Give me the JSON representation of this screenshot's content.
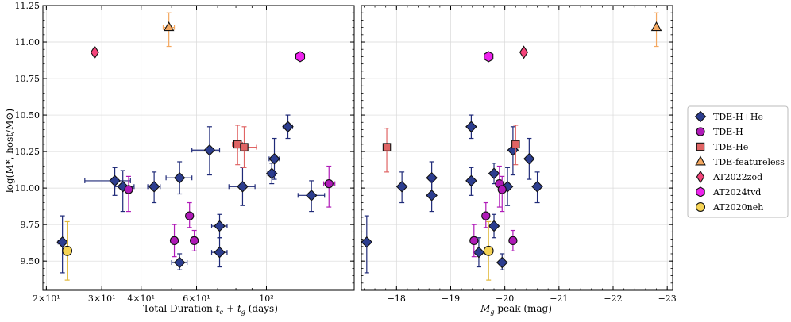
{
  "chart_data": [
    {
      "type": "scatter",
      "panel": "left",
      "xscale": "log",
      "xlabel_parts": {
        "main": "Total Duration ",
        "te": "t",
        "te_sub": "e",
        "plus": " + ",
        "tg": "t",
        "tg_sub": "g",
        "units": " (days)"
      },
      "ylabel_text": "log(M*, host/M⊙)",
      "xlim": [
        19.5,
        190
      ],
      "ylim": [
        9.3,
        11.25
      ],
      "xticks": [
        {
          "v": 20,
          "label": "2×10¹"
        },
        {
          "v": 30,
          "label": "3×10¹"
        },
        {
          "v": 40,
          "label": "4×10¹"
        },
        {
          "v": 60,
          "label": "6×10¹"
        },
        {
          "v": 100,
          "label": "10²"
        }
      ],
      "yticks": [
        {
          "v": 9.5,
          "label": "9.50"
        },
        {
          "v": 9.75,
          "label": "9.75"
        },
        {
          "v": 10.0,
          "label": "10.00"
        },
        {
          "v": 10.25,
          "label": "10.25"
        },
        {
          "v": 10.5,
          "label": "10.50"
        },
        {
          "v": 10.75,
          "label": "10.75"
        },
        {
          "v": 11.0,
          "label": "11.00"
        },
        {
          "v": 11.25,
          "label": "11.25"
        }
      ],
      "series": [
        {
          "name": "TDE-H+He",
          "points": [
            {
              "x": 22.5,
              "y": 9.63,
              "xl": 21.8,
              "xh": 23.3,
              "yl": 9.42,
              "yh": 9.81
            },
            {
              "x": 33,
              "y": 10.05,
              "xl": 26.5,
              "xh": 37,
              "yl": 9.95,
              "yh": 10.14
            },
            {
              "x": 35,
              "y": 10.01,
              "xl": 33,
              "xh": 38,
              "yl": 9.84,
              "yh": 10.12
            },
            {
              "x": 44,
              "y": 10.01,
              "xl": 42,
              "xh": 46,
              "yl": 9.9,
              "yh": 10.11
            },
            {
              "x": 53,
              "y": 10.07,
              "xl": 48,
              "xh": 58,
              "yl": 9.96,
              "yh": 10.18
            },
            {
              "x": 53,
              "y": 9.49,
              "xl": 50,
              "xh": 56,
              "yl": 9.44,
              "yh": 9.55
            },
            {
              "x": 66,
              "y": 10.26,
              "xl": 58,
              "xh": 71,
              "yl": 10.09,
              "yh": 10.42
            },
            {
              "x": 71,
              "y": 9.74,
              "xl": 67,
              "xh": 75,
              "yl": 9.66,
              "yh": 9.82
            },
            {
              "x": 71,
              "y": 9.56,
              "xl": 67,
              "xh": 75,
              "yl": 9.46,
              "yh": 9.66
            },
            {
              "x": 84,
              "y": 10.01,
              "xl": 76,
              "xh": 92,
              "yl": 9.88,
              "yh": 10.14
            },
            {
              "x": 104,
              "y": 10.1,
              "xl": 101,
              "xh": 107,
              "yl": 10.03,
              "yh": 10.17
            },
            {
              "x": 106,
              "y": 10.2,
              "xl": 102,
              "xh": 110,
              "yl": 10.06,
              "yh": 10.34
            },
            {
              "x": 117,
              "y": 10.42,
              "xl": 113,
              "xh": 121,
              "yl": 10.34,
              "yh": 10.5
            },
            {
              "x": 139,
              "y": 9.95,
              "xl": 126,
              "xh": 153,
              "yl": 9.84,
              "yh": 10.05
            }
          ]
        },
        {
          "name": "TDE-H",
          "points": [
            {
              "x": 36.5,
              "y": 9.99,
              "xl": 36,
              "xh": 37,
              "yl": 9.84,
              "yh": 10.08
            },
            {
              "x": 51,
              "y": 9.64,
              "xl": 50,
              "xh": 52,
              "yl": 9.53,
              "yh": 9.75
            },
            {
              "x": 57,
              "y": 9.81,
              "xl": 56,
              "xh": 58,
              "yl": 9.73,
              "yh": 9.9
            },
            {
              "x": 59,
              "y": 9.64,
              "xl": 58,
              "xh": 60,
              "yl": 9.57,
              "yh": 9.71
            },
            {
              "x": 158,
              "y": 10.03,
              "xl": 152,
              "xh": 165,
              "yl": 9.87,
              "yh": 10.15
            }
          ]
        },
        {
          "name": "TDE-He",
          "points": [
            {
              "x": 81,
              "y": 10.3,
              "xl": 78,
              "xh": 84,
              "yl": 10.16,
              "yh": 10.43
            },
            {
              "x": 85,
              "y": 10.28,
              "xl": 81,
              "xh": 93,
              "yl": 10.14,
              "yh": 10.42
            }
          ]
        },
        {
          "name": "TDE-featureless",
          "points": [
            {
              "x": 49,
              "y": 11.1,
              "xl": 47,
              "xh": 51,
              "yl": 10.97,
              "yh": 11.2
            }
          ]
        },
        {
          "name": "AT2022zod",
          "points": [
            {
              "x": 28.5,
              "y": 10.93
            }
          ]
        },
        {
          "name": "AT2024tvd",
          "points": [
            {
              "x": 128,
              "y": 10.9
            }
          ]
        },
        {
          "name": "AT2020neh",
          "points": [
            {
              "x": 23.3,
              "y": 9.57,
              "xl": 23.1,
              "xh": 23.5,
              "yl": 9.37,
              "yh": 9.77
            }
          ]
        }
      ]
    },
    {
      "type": "scatter",
      "panel": "right",
      "xscale": "linear",
      "xlabel_parts": {
        "main": "M",
        "sub": "g",
        "rest": " peak (mag)"
      },
      "xlim": [
        -17.35,
        -23.1
      ],
      "ylim": [
        9.3,
        11.25
      ],
      "xticks": [
        {
          "v": -18,
          "label": "−18"
        },
        {
          "v": -19,
          "label": "−19"
        },
        {
          "v": -20,
          "label": "−20"
        },
        {
          "v": -21,
          "label": "−21"
        },
        {
          "v": -22,
          "label": "−22"
        },
        {
          "v": -23,
          "label": "−23"
        }
      ],
      "yticks": [
        9.5,
        9.75,
        10.0,
        10.25,
        10.5,
        10.75,
        11.0,
        11.25
      ],
      "series": [
        {
          "name": "TDE-H+He",
          "points": [
            {
              "x": -17.45,
              "y": 9.63,
              "yl": 9.42,
              "yh": 9.81
            },
            {
              "x": -18.1,
              "y": 10.01,
              "yl": 9.9,
              "yh": 10.11
            },
            {
              "x": -18.65,
              "y": 10.07,
              "yl": 9.96,
              "yh": 10.18
            },
            {
              "x": -18.65,
              "y": 9.95,
              "yl": 9.84,
              "yh": 10.05
            },
            {
              "x": -19.38,
              "y": 10.42,
              "yl": 10.34,
              "yh": 10.5
            },
            {
              "x": -19.38,
              "y": 10.05,
              "yl": 9.95,
              "yh": 10.14
            },
            {
              "x": -19.52,
              "y": 9.56,
              "yl": 9.46,
              "yh": 9.66
            },
            {
              "x": -19.8,
              "y": 9.74,
              "yl": 9.66,
              "yh": 9.82
            },
            {
              "x": -19.8,
              "y": 10.1,
              "yl": 10.03,
              "yh": 10.17
            },
            {
              "x": -19.95,
              "y": 9.49,
              "yl": 9.44,
              "yh": 9.55
            },
            {
              "x": -20.05,
              "y": 10.01,
              "yl": 9.88,
              "yh": 10.14
            },
            {
              "x": -20.15,
              "y": 10.26,
              "yl": 10.09,
              "yh": 10.42
            },
            {
              "x": -20.45,
              "y": 10.2,
              "yl": 10.06,
              "yh": 10.34
            },
            {
              "x": -20.6,
              "y": 10.01,
              "yl": 9.9,
              "yh": 10.11
            }
          ]
        },
        {
          "name": "TDE-H",
          "points": [
            {
              "x": -19.43,
              "y": 9.64,
              "yl": 9.53,
              "yh": 9.75
            },
            {
              "x": -19.65,
              "y": 9.81,
              "yl": 9.73,
              "yh": 9.9
            },
            {
              "x": -19.9,
              "y": 10.03,
              "yl": 9.87,
              "yh": 10.15
            },
            {
              "x": -19.95,
              "y": 9.99,
              "yl": 9.84,
              "yh": 10.08
            },
            {
              "x": -20.15,
              "y": 9.64,
              "yl": 9.57,
              "yh": 9.71
            }
          ]
        },
        {
          "name": "TDE-He",
          "points": [
            {
              "x": -17.82,
              "y": 10.28,
              "yl": 10.11,
              "yh": 10.41
            },
            {
              "x": -20.2,
              "y": 10.3,
              "yl": 10.16,
              "yh": 10.43
            }
          ]
        },
        {
          "name": "TDE-featureless",
          "points": [
            {
              "x": -22.8,
              "y": 11.1,
              "yl": 10.97,
              "yh": 11.2
            }
          ]
        },
        {
          "name": "AT2022zod",
          "points": [
            {
              "x": -20.35,
              "y": 10.93
            }
          ]
        },
        {
          "name": "AT2024tvd",
          "points": [
            {
              "x": -19.7,
              "y": 10.9
            }
          ]
        },
        {
          "name": "AT2020neh",
          "points": [
            {
              "x": -19.7,
              "y": 9.57,
              "yl": 9.37,
              "yh": 9.77
            }
          ]
        }
      ]
    }
  ],
  "legend": {
    "placement": "right",
    "items": [
      {
        "name": "TDE-H+He",
        "marker": "diamond",
        "fill": "#2c3d8f",
        "err": "#1f2a78"
      },
      {
        "name": "TDE-H",
        "marker": "circle",
        "fill": "#b01ab8",
        "err": "#b01ab8"
      },
      {
        "name": "TDE-He",
        "marker": "square",
        "fill": "#e06464",
        "err": "#e06464"
      },
      {
        "name": "TDE-featureless",
        "marker": "triangle",
        "fill": "#f4a860",
        "err": "#f4a860"
      },
      {
        "name": "AT2022zod",
        "marker": "thin-diamond",
        "fill": "#f4447a",
        "err": "#f4447a"
      },
      {
        "name": "AT2024tvd",
        "marker": "hexagon",
        "fill": "#ee22ee",
        "err": "#ee22ee"
      },
      {
        "name": "AT2020neh",
        "marker": "circle",
        "fill": "#f5d354",
        "err": "#e0b83a"
      }
    ]
  }
}
